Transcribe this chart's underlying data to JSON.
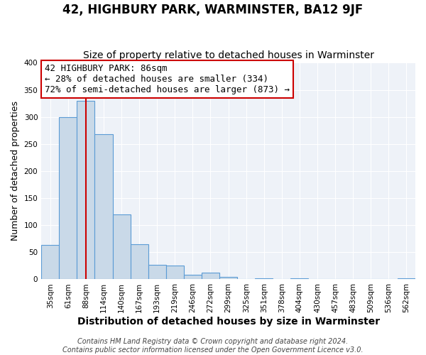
{
  "title": "42, HIGHBURY PARK, WARMINSTER, BA12 9JF",
  "subtitle": "Size of property relative to detached houses in Warminster",
  "xlabel": "Distribution of detached houses by size in Warminster",
  "ylabel": "Number of detached properties",
  "bar_labels": [
    "35sqm",
    "61sqm",
    "88sqm",
    "114sqm",
    "140sqm",
    "167sqm",
    "193sqm",
    "219sqm",
    "246sqm",
    "272sqm",
    "299sqm",
    "325sqm",
    "351sqm",
    "378sqm",
    "404sqm",
    "430sqm",
    "457sqm",
    "483sqm",
    "509sqm",
    "536sqm",
    "562sqm"
  ],
  "bar_values": [
    63,
    300,
    330,
    268,
    120,
    65,
    27,
    25,
    8,
    12,
    4,
    0,
    2,
    0,
    2,
    0,
    0,
    0,
    0,
    0,
    2
  ],
  "bar_color": "#c9d9e8",
  "bar_edgecolor": "#5b9bd5",
  "bar_linewidth": 0.8,
  "vline_x": 2,
  "vline_color": "#cc0000",
  "vline_linewidth": 1.5,
  "annotation_title": "42 HIGHBURY PARK: 86sqm",
  "annotation_line1": "← 28% of detached houses are smaller (334)",
  "annotation_line2": "72% of semi-detached houses are larger (873) →",
  "annotation_box_color": "#ffffff",
  "annotation_box_edgecolor": "#cc0000",
  "ylim": [
    0,
    400
  ],
  "yticks": [
    0,
    50,
    100,
    150,
    200,
    250,
    300,
    350,
    400
  ],
  "footer_line1": "Contains HM Land Registry data © Crown copyright and database right 2024.",
  "footer_line2": "Contains public sector information licensed under the Open Government Licence v3.0.",
  "plot_bg_color": "#eef2f8",
  "fig_bg_color": "#ffffff",
  "grid_color": "#ffffff",
  "title_fontsize": 12,
  "subtitle_fontsize": 10,
  "xlabel_fontsize": 10,
  "ylabel_fontsize": 9,
  "tick_fontsize": 7.5,
  "footer_fontsize": 7,
  "annotation_fontsize": 9
}
